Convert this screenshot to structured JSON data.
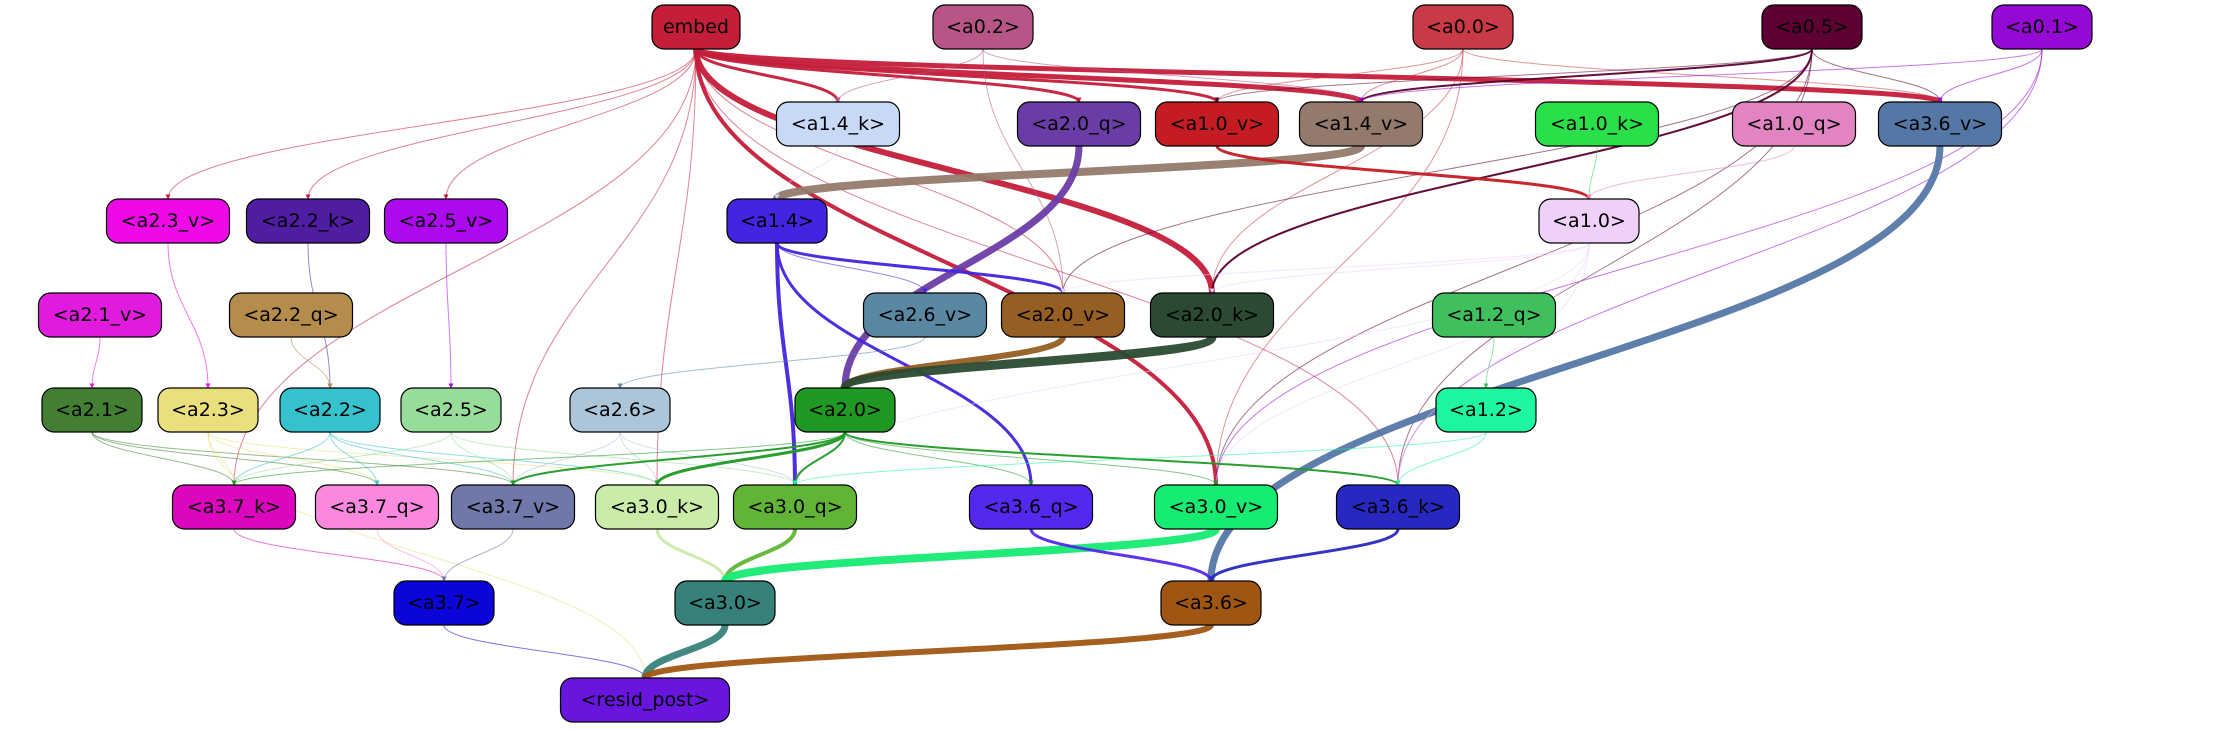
{
  "nodes": [
    {
      "id": "embed",
      "label": "embed",
      "fill": "#c41e3a"
    },
    {
      "id": "a0_2",
      "label": "<a0.2>",
      "fill": "#b75586"
    },
    {
      "id": "a0_0",
      "label": "<a0.0>",
      "fill": "#c93a46"
    },
    {
      "id": "a0_5",
      "label": "<a0.5>",
      "fill": "#5c0132"
    },
    {
      "id": "a0_1",
      "label": "<a0.1>",
      "fill": "#9409d3"
    },
    {
      "id": "a1_4_k",
      "label": "<a1.4_k>",
      "fill": "#c8d8f7"
    },
    {
      "id": "a2_0_q",
      "label": "<a2.0_q>",
      "fill": "#6a3ca6"
    },
    {
      "id": "a1_0_v",
      "label": "<a1.0_v>",
      "fill": "#c41c22"
    },
    {
      "id": "a1_4_v",
      "label": "<a1.4_v>",
      "fill": "#937a6d"
    },
    {
      "id": "a1_0_k",
      "label": "<a1.0_k>",
      "fill": "#2ae04a"
    },
    {
      "id": "a1_0_q",
      "label": "<a1.0_q>",
      "fill": "#e184c1"
    },
    {
      "id": "a3_6_v",
      "label": "<a3.6_v>",
      "fill": "#5577a6"
    },
    {
      "id": "a2_3_v",
      "label": "<a2.3_v>",
      "fill": "#ef08e8"
    },
    {
      "id": "a2_2_k",
      "label": "<a2.2_k>",
      "fill": "#4e1da1"
    },
    {
      "id": "a2_5_v",
      "label": "<a2.5_v>",
      "fill": "#ac09ef"
    },
    {
      "id": "a1_4",
      "label": "<a1.4>",
      "fill": "#4125e0"
    },
    {
      "id": "a1_0",
      "label": "<a1.0>",
      "fill": "#eed0f9"
    },
    {
      "id": "a2_1_v",
      "label": "<a2.1_v>",
      "fill": "#e11bde"
    },
    {
      "id": "a2_2_q",
      "label": "<a2.2_q>",
      "fill": "#b48d4c"
    },
    {
      "id": "a2_6_v",
      "label": "<a2.6_v>",
      "fill": "#5a87a2"
    },
    {
      "id": "a2_0_v",
      "label": "<a2.0_v>",
      "fill": "#955e22"
    },
    {
      "id": "a2_0_k",
      "label": "<a2.0_k>",
      "fill": "#2b4a31"
    },
    {
      "id": "a1_2_q",
      "label": "<a1.2_q>",
      "fill": "#3fbf5e"
    },
    {
      "id": "a2_1",
      "label": "<a2.1>",
      "fill": "#427f33"
    },
    {
      "id": "a2_3",
      "label": "<a2.3>",
      "fill": "#e9df7d"
    },
    {
      "id": "a2_2",
      "label": "<a2.2>",
      "fill": "#35c2cc"
    },
    {
      "id": "a2_5",
      "label": "<a2.5>",
      "fill": "#97dc99"
    },
    {
      "id": "a2_6",
      "label": "<a2.6>",
      "fill": "#adc5d8"
    },
    {
      "id": "a2_0",
      "label": "<a2.0>",
      "fill": "#1f9923"
    },
    {
      "id": "a1_2",
      "label": "<a1.2>",
      "fill": "#1ff7a0"
    },
    {
      "id": "a3_7_k",
      "label": "<a3.7_k>",
      "fill": "#db06be"
    },
    {
      "id": "a3_7_q",
      "label": "<a3.7_q>",
      "fill": "#fa88de"
    },
    {
      "id": "a3_7_v",
      "label": "<a3.7_v>",
      "fill": "#6f78a8"
    },
    {
      "id": "a3_0_k",
      "label": "<a3.0_k>",
      "fill": "#cbeca9"
    },
    {
      "id": "a3_0_q",
      "label": "<a3.0_q>",
      "fill": "#61b435"
    },
    {
      "id": "a3_6_q",
      "label": "<a3.6_q>",
      "fill": "#5528ef"
    },
    {
      "id": "a3_0_v",
      "label": "<a3.0_v>",
      "fill": "#16eb72"
    },
    {
      "id": "a3_6_k",
      "label": "<a3.6_k>",
      "fill": "#2828c1"
    },
    {
      "id": "a3_7",
      "label": "<a3.7>",
      "fill": "#0c05da"
    },
    {
      "id": "a3_0",
      "label": "<a3.0>",
      "fill": "#36827a"
    },
    {
      "id": "a3_6",
      "label": "<a3.6>",
      "fill": "#a05613"
    },
    {
      "id": "resid_post",
      "label": "<resid_post>",
      "fill": "#6815dd"
    }
  ],
  "edges": [
    {
      "from": "embed",
      "to": "a3_6_v",
      "color": "#c41e3a",
      "weight": 5
    },
    {
      "from": "embed",
      "to": "a1_4_v",
      "color": "#c41e3a",
      "weight": 5
    },
    {
      "from": "embed",
      "to": "a2_0_k",
      "color": "#c41e3a",
      "weight": 6
    },
    {
      "from": "embed",
      "to": "a3_0_v",
      "color": "#c41e3a",
      "weight": 4
    },
    {
      "from": "embed",
      "to": "a2_0_q",
      "color": "#c41e3a",
      "weight": 3
    },
    {
      "from": "embed",
      "to": "a1_0_v",
      "color": "#c41e3a",
      "weight": 3
    },
    {
      "from": "embed",
      "to": "a1_4_k",
      "color": "#c41e3a",
      "weight": 3
    },
    {
      "from": "embed",
      "to": "a2_3_v",
      "color": "#c41e3a",
      "weight": 1
    },
    {
      "from": "embed",
      "to": "a2_2_k",
      "color": "#c41e3a",
      "weight": 1
    },
    {
      "from": "embed",
      "to": "a2_5_v",
      "color": "#c41e3a",
      "weight": 1
    },
    {
      "from": "embed",
      "to": "a3_7_k",
      "color": "#c41e3a",
      "weight": 1
    },
    {
      "from": "embed",
      "to": "a3_7_v",
      "color": "#c41e3a",
      "weight": 1
    },
    {
      "from": "embed",
      "to": "a3_0_k",
      "color": "#c41e3a",
      "weight": 1
    },
    {
      "from": "embed",
      "to": "a3_6_k",
      "color": "#c41e3a",
      "weight": 1
    },
    {
      "from": "embed",
      "to": "a2_0_v",
      "color": "#c41e3a",
      "weight": 1
    },
    {
      "from": "a0_2",
      "to": "a1_4_v",
      "color": "#b75586",
      "weight": 1
    },
    {
      "from": "a0_2",
      "to": "a2_0_v",
      "color": "#b75586",
      "weight": 1
    },
    {
      "from": "a0_2",
      "to": "a1_4_k",
      "color": "#b75586",
      "weight": 1
    },
    {
      "from": "a0_0",
      "to": "a1_4_v",
      "color": "#c93a46",
      "weight": 1
    },
    {
      "from": "a0_0",
      "to": "a1_0_v",
      "color": "#c93a46",
      "weight": 1
    },
    {
      "from": "a0_0",
      "to": "a2_0_k",
      "color": "#c93a46",
      "weight": 1
    },
    {
      "from": "a0_0",
      "to": "a3_0_v",
      "color": "#c93a46",
      "weight": 1
    },
    {
      "from": "a0_0",
      "to": "a3_6_v",
      "color": "#c93a46",
      "weight": 1
    },
    {
      "from": "a0_5",
      "to": "a1_4_v",
      "color": "#5c0132",
      "weight": 2
    },
    {
      "from": "a0_5",
      "to": "a3_6_v",
      "color": "#5c0132",
      "weight": 1
    },
    {
      "from": "a0_5",
      "to": "a2_0_k",
      "color": "#5c0132",
      "weight": 2
    },
    {
      "from": "a0_5",
      "to": "a2_0_v",
      "color": "#5c0132",
      "weight": 1
    },
    {
      "from": "a0_5",
      "to": "a3_6_k",
      "color": "#5c0132",
      "weight": 1
    },
    {
      "from": "a0_5",
      "to": "a3_0_v",
      "color": "#5c0132",
      "weight": 1
    },
    {
      "from": "a0_5",
      "to": "a1_0_v",
      "color": "#5c0132",
      "weight": 1
    },
    {
      "from": "a0_1",
      "to": "a3_6_v",
      "color": "#9409d3",
      "weight": 1
    },
    {
      "from": "a0_1",
      "to": "a1_4_v",
      "color": "#9409d3",
      "weight": 1
    },
    {
      "from": "a0_1",
      "to": "a3_6_k",
      "color": "#9409d3",
      "weight": 1
    },
    {
      "from": "a0_1",
      "to": "a3_0_v",
      "color": "#9409d3",
      "weight": 1
    },
    {
      "from": "a1_4_v",
      "to": "a1_4",
      "color": "#937a6d",
      "weight": 8
    },
    {
      "from": "a1_0_v",
      "to": "a1_0",
      "color": "#c41c22",
      "weight": 3
    },
    {
      "from": "a1_0_k",
      "to": "a1_0",
      "color": "#2ae04a",
      "weight": 1
    },
    {
      "from": "a1_0_q",
      "to": "a1_0",
      "color": "#e184c1",
      "weight": 1
    },
    {
      "from": "a1_4_k",
      "to": "a1_4",
      "color": "#c8d8f7",
      "weight": 1
    },
    {
      "from": "a2_0_q",
      "to": "a2_0",
      "color": "#6a3ca6",
      "weight": 7
    },
    {
      "from": "a3_6_v",
      "to": "a3_6",
      "color": "#5577a6",
      "weight": 7
    },
    {
      "from": "a1_4",
      "to": "a3_0_q",
      "color": "#4125e0",
      "weight": 4
    },
    {
      "from": "a1_4",
      "to": "a3_6_q",
      "color": "#4125e0",
      "weight": 3
    },
    {
      "from": "a1_4",
      "to": "a2_0_v",
      "color": "#4125e0",
      "weight": 3
    },
    {
      "from": "a1_4",
      "to": "a2_6_v",
      "color": "#4125e0",
      "weight": 1
    },
    {
      "from": "a1_0",
      "to": "a2_0_k",
      "color": "#eed0f9",
      "weight": 1
    },
    {
      "from": "a1_0",
      "to": "a2_0_v",
      "color": "#eed0f9",
      "weight": 1
    },
    {
      "from": "a1_0",
      "to": "a3_6_k",
      "color": "#eed0f9",
      "weight": 1
    },
    {
      "from": "a1_0",
      "to": "a3_0_v",
      "color": "#eed0f9",
      "weight": 1
    },
    {
      "from": "a1_0",
      "to": "a3_0_q",
      "color": "#eed0f9",
      "weight": 1
    },
    {
      "from": "a2_3_v",
      "to": "a2_3",
      "color": "#ef08e8",
      "weight": 1
    },
    {
      "from": "a2_2_k",
      "to": "a2_2",
      "color": "#4e1da1",
      "weight": 1
    },
    {
      "from": "a2_5_v",
      "to": "a2_5",
      "color": "#ac09ef",
      "weight": 1
    },
    {
      "from": "a2_1_v",
      "to": "a2_1",
      "color": "#e11bde",
      "weight": 1
    },
    {
      "from": "a2_2_q",
      "to": "a2_2",
      "color": "#b48d4c",
      "weight": 1
    },
    {
      "from": "a2_6_v",
      "to": "a2_6",
      "color": "#5a87a2",
      "weight": 1
    },
    {
      "from": "a2_0_v",
      "to": "a2_0",
      "color": "#955e22",
      "weight": 6
    },
    {
      "from": "a2_0_k",
      "to": "a2_0",
      "color": "#2b4a31",
      "weight": 9
    },
    {
      "from": "a1_2_q",
      "to": "a1_2",
      "color": "#3fbf5e",
      "weight": 1
    },
    {
      "from": "a2_1",
      "to": "a3_7_k",
      "color": "#427f33",
      "weight": 1
    },
    {
      "from": "a2_1",
      "to": "a3_7_v",
      "color": "#427f33",
      "weight": 1
    },
    {
      "from": "a2_1",
      "to": "a3_7_q",
      "color": "#427f33",
      "weight": 1
    },
    {
      "from": "a2_3",
      "to": "a3_7_k",
      "color": "#e9df7d",
      "weight": 1
    },
    {
      "from": "a2_3",
      "to": "a3_7_q",
      "color": "#e9df7d",
      "weight": 1
    },
    {
      "from": "a2_3",
      "to": "resid_post",
      "color": "#e9df7d",
      "weight": 1
    },
    {
      "from": "a2_3",
      "to": "a3_0_k",
      "color": "#e9df7d",
      "weight": 1
    },
    {
      "from": "a2_2",
      "to": "a3_7_k",
      "color": "#35c2cc",
      "weight": 1
    },
    {
      "from": "a2_2",
      "to": "a3_7_q",
      "color": "#35c2cc",
      "weight": 1
    },
    {
      "from": "a2_2",
      "to": "a3_7_v",
      "color": "#35c2cc",
      "weight": 1
    },
    {
      "from": "a2_2",
      "to": "a3_0_k",
      "color": "#35c2cc",
      "weight": 1
    },
    {
      "from": "a2_5",
      "to": "a3_7_v",
      "color": "#97dc99",
      "weight": 1
    },
    {
      "from": "a2_5",
      "to": "a3_7_k",
      "color": "#97dc99",
      "weight": 1
    },
    {
      "from": "a2_5",
      "to": "a3_0_q",
      "color": "#97dc99",
      "weight": 1
    },
    {
      "from": "a2_6",
      "to": "a3_7_v",
      "color": "#adc5d8",
      "weight": 1
    },
    {
      "from": "a2_6",
      "to": "a3_0_k",
      "color": "#adc5d8",
      "weight": 1
    },
    {
      "from": "a2_6",
      "to": "a3_0_q",
      "color": "#adc5d8",
      "weight": 1
    },
    {
      "from": "a2_0",
      "to": "a3_0_k",
      "color": "#1f9923",
      "weight": 3
    },
    {
      "from": "a2_0",
      "to": "a3_0_q",
      "color": "#1f9923",
      "weight": 2
    },
    {
      "from": "a2_0",
      "to": "a3_6_q",
      "color": "#1f9923",
      "weight": 1
    },
    {
      "from": "a2_0",
      "to": "a3_6_k",
      "color": "#1f9923",
      "weight": 2
    },
    {
      "from": "a2_0",
      "to": "a3_7_v",
      "color": "#1f9923",
      "weight": 2
    },
    {
      "from": "a2_0",
      "to": "a3_7_k",
      "color": "#1f9923",
      "weight": 1
    },
    {
      "from": "a2_0",
      "to": "a3_0_v",
      "color": "#1f9923",
      "weight": 1
    },
    {
      "from": "a1_2",
      "to": "a3_6_k",
      "color": "#1ff7a0",
      "weight": 1
    },
    {
      "from": "a1_2",
      "to": "a3_0_q",
      "color": "#1ff7a0",
      "weight": 1
    },
    {
      "from": "a3_7_k",
      "to": "a3_7",
      "color": "#db06be",
      "weight": 1
    },
    {
      "from": "a3_7_q",
      "to": "a3_7",
      "color": "#fa88de",
      "weight": 1
    },
    {
      "from": "a3_7_v",
      "to": "a3_7",
      "color": "#6f78a8",
      "weight": 1
    },
    {
      "from": "a3_0_k",
      "to": "a3_0",
      "color": "#cbeca9",
      "weight": 3
    },
    {
      "from": "a3_0_q",
      "to": "a3_0",
      "color": "#61b435",
      "weight": 4
    },
    {
      "from": "a3_0_v",
      "to": "a3_0",
      "color": "#16eb72",
      "weight": 8
    },
    {
      "from": "a3_6_q",
      "to": "a3_6",
      "color": "#5528ef",
      "weight": 3
    },
    {
      "from": "a3_6_k",
      "to": "a3_6",
      "color": "#2828c1",
      "weight": 3
    },
    {
      "from": "a3_7",
      "to": "resid_post",
      "color": "#0c05da",
      "weight": 1
    },
    {
      "from": "a3_0",
      "to": "resid_post",
      "color": "#36827a",
      "weight": 7
    },
    {
      "from": "a3_6",
      "to": "resid_post",
      "color": "#a05613",
      "weight": 6
    }
  ]
}
